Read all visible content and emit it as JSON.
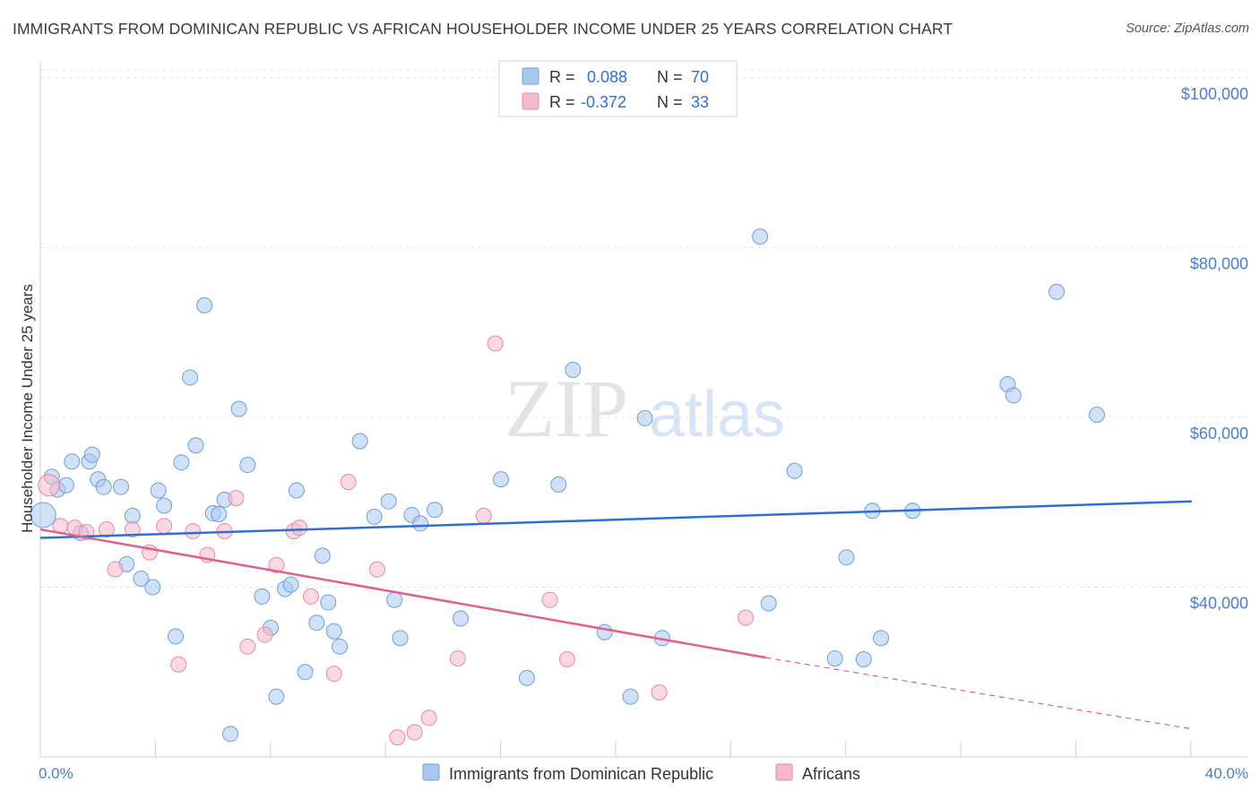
{
  "header": {
    "title": "IMMIGRANTS FROM DOMINICAN REPUBLIC VS AFRICAN HOUSEHOLDER INCOME UNDER 25 YEARS CORRELATION CHART",
    "source": "Source: ZipAtlas.com"
  },
  "watermark": {
    "zip": "ZIP",
    "atlas": "atlas"
  },
  "legend_box": {
    "rows": [
      {
        "r_label": "R =",
        "r_value": "0.088",
        "n_label": "N =",
        "n_value": "70",
        "color": "#a9c8f0"
      },
      {
        "r_label": "R =",
        "r_value": "-0.372",
        "n_label": "N =",
        "n_value": "33",
        "color": "#f6b8cb"
      }
    ]
  },
  "chart_data": {
    "type": "scatter",
    "title": "IMMIGRANTS FROM DOMINICAN REPUBLIC VS AFRICAN HOUSEHOLDER INCOME UNDER 25 YEARS CORRELATION CHART",
    "xlabel": "",
    "ylabel": "Householder Income Under 25 years",
    "xlim": [
      0,
      40
    ],
    "ylim": [
      20000,
      102000
    ],
    "x_tick_labels": [
      "0.0%",
      "40.0%"
    ],
    "y_ticks": [
      {
        "value": 40000,
        "label": "$40,000"
      },
      {
        "value": 60000,
        "label": "$60,000"
      },
      {
        "value": 80000,
        "label": "$80,000"
      },
      {
        "value": 100000,
        "label": "$100,000"
      }
    ],
    "grid": true,
    "series": [
      {
        "name": "Immigrants from Dominican Republic",
        "color": "#a9c8f0",
        "stroke": "#6f9fd8",
        "trend": {
          "x0": 0,
          "y0": 45800,
          "x1": 40,
          "y1": 50100,
          "color": "#2f6fd0"
        },
        "points": [
          [
            0.1,
            48500
          ],
          [
            0.4,
            53000
          ],
          [
            0.6,
            51500
          ],
          [
            0.9,
            52000
          ],
          [
            1.1,
            54800
          ],
          [
            1.4,
            46400
          ],
          [
            1.7,
            54800
          ],
          [
            1.8,
            55600
          ],
          [
            2.0,
            52700
          ],
          [
            2.2,
            51800
          ],
          [
            2.8,
            51800
          ],
          [
            3.0,
            42700
          ],
          [
            3.2,
            48400
          ],
          [
            3.5,
            41000
          ],
          [
            3.9,
            40000
          ],
          [
            4.1,
            51400
          ],
          [
            4.3,
            49600
          ],
          [
            4.7,
            34200
          ],
          [
            4.9,
            54700
          ],
          [
            5.2,
            64700
          ],
          [
            5.4,
            56700
          ],
          [
            5.7,
            73200
          ],
          [
            6.0,
            48700
          ],
          [
            6.2,
            48600
          ],
          [
            6.4,
            50300
          ],
          [
            6.6,
            22700
          ],
          [
            6.9,
            61000
          ],
          [
            7.2,
            54400
          ],
          [
            7.7,
            38900
          ],
          [
            8.0,
            35200
          ],
          [
            8.2,
            27100
          ],
          [
            8.5,
            39800
          ],
          [
            8.7,
            40300
          ],
          [
            8.9,
            51400
          ],
          [
            9.2,
            30000
          ],
          [
            9.6,
            35800
          ],
          [
            9.8,
            43700
          ],
          [
            10.0,
            38200
          ],
          [
            10.2,
            34800
          ],
          [
            10.4,
            33000
          ],
          [
            11.1,
            57200
          ],
          [
            11.6,
            48300
          ],
          [
            12.1,
            50100
          ],
          [
            12.3,
            38500
          ],
          [
            12.5,
            34000
          ],
          [
            12.9,
            48500
          ],
          [
            13.2,
            47500
          ],
          [
            13.7,
            49100
          ],
          [
            14.6,
            36300
          ],
          [
            16.0,
            52700
          ],
          [
            16.9,
            29300
          ],
          [
            18.0,
            52100
          ],
          [
            18.5,
            65600
          ],
          [
            19.6,
            34700
          ],
          [
            20.5,
            27100
          ],
          [
            21.0,
            59900
          ],
          [
            21.6,
            34000
          ],
          [
            25.0,
            81300
          ],
          [
            25.3,
            38100
          ],
          [
            26.2,
            53700
          ],
          [
            27.6,
            31600
          ],
          [
            28.0,
            43500
          ],
          [
            28.6,
            31500
          ],
          [
            28.9,
            49000
          ],
          [
            29.2,
            34000
          ],
          [
            30.3,
            49000
          ],
          [
            33.6,
            63900
          ],
          [
            33.8,
            62600
          ],
          [
            35.3,
            74800
          ],
          [
            36.7,
            60300
          ]
        ]
      },
      {
        "name": "Africans",
        "color": "#f6b8cb",
        "stroke": "#e48aa7",
        "trend": {
          "x0": 0,
          "y0": 46800,
          "x1": 25.2,
          "y1": 31700,
          "color": "#e0608c",
          "dashed_to": {
            "x": 40,
            "y": 23300
          }
        },
        "points": [
          [
            0.3,
            52000
          ],
          [
            0.7,
            47200
          ],
          [
            1.2,
            47000
          ],
          [
            1.6,
            46500
          ],
          [
            2.3,
            46800
          ],
          [
            2.6,
            42100
          ],
          [
            3.2,
            46800
          ],
          [
            3.8,
            44100
          ],
          [
            4.3,
            47200
          ],
          [
            4.8,
            30900
          ],
          [
            5.3,
            46600
          ],
          [
            5.8,
            43800
          ],
          [
            6.4,
            46600
          ],
          [
            6.8,
            50500
          ],
          [
            7.2,
            33000
          ],
          [
            7.8,
            34400
          ],
          [
            8.2,
            42600
          ],
          [
            8.8,
            46600
          ],
          [
            9.0,
            47000
          ],
          [
            9.4,
            38900
          ],
          [
            10.2,
            29800
          ],
          [
            10.7,
            52400
          ],
          [
            11.7,
            42100
          ],
          [
            12.4,
            22300
          ],
          [
            13.0,
            22900
          ],
          [
            13.5,
            24600
          ],
          [
            14.5,
            31600
          ],
          [
            15.4,
            48400
          ],
          [
            15.8,
            68700
          ],
          [
            17.7,
            38500
          ],
          [
            18.3,
            31500
          ],
          [
            21.5,
            27600
          ],
          [
            24.5,
            36400
          ]
        ]
      }
    ]
  },
  "bottom_legend": {
    "items": [
      {
        "label": "Immigrants from Dominican Republic",
        "color": "#a9c8f0",
        "stroke": "#6f9fd8"
      },
      {
        "label": "Africans",
        "color": "#f6b8cb",
        "stroke": "#e48aa7"
      }
    ]
  }
}
